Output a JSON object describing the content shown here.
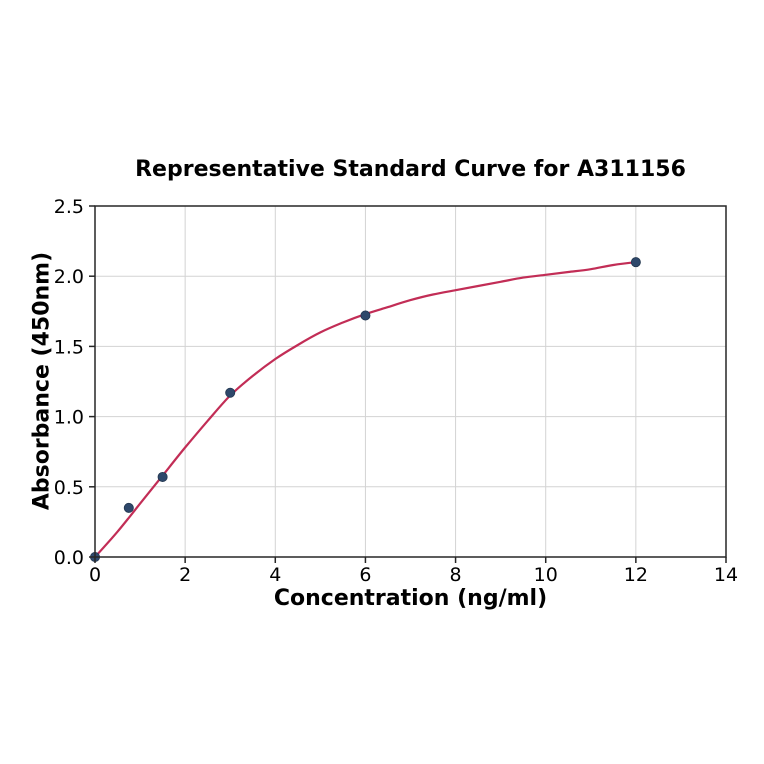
{
  "chart_data": {
    "type": "scatter",
    "title": "Representative Standard Curve for A311156",
    "xlabel": "Concentration (ng/ml)",
    "ylabel": "Absorbance (450nm)",
    "xlim": [
      0,
      14
    ],
    "ylim": [
      0,
      2.5
    ],
    "xticks": [
      0,
      2,
      4,
      6,
      8,
      10,
      12,
      14
    ],
    "yticks": [
      0.0,
      0.5,
      1.0,
      1.5,
      2.0,
      2.5
    ],
    "grid": true,
    "legend": "none",
    "points": [
      {
        "x": 0,
        "y": 0.0
      },
      {
        "x": 0.75,
        "y": 0.35
      },
      {
        "x": 1.5,
        "y": 0.57
      },
      {
        "x": 3,
        "y": 1.17
      },
      {
        "x": 6,
        "y": 1.72
      },
      {
        "x": 12,
        "y": 2.1
      }
    ],
    "fit_curve": [
      [
        0,
        0.0
      ],
      [
        0.5,
        0.18
      ],
      [
        1,
        0.38
      ],
      [
        1.5,
        0.58
      ],
      [
        2,
        0.78
      ],
      [
        2.5,
        0.97
      ],
      [
        3,
        1.15
      ],
      [
        3.5,
        1.29
      ],
      [
        4,
        1.41
      ],
      [
        4.5,
        1.51
      ],
      [
        5,
        1.6
      ],
      [
        5.5,
        1.67
      ],
      [
        6,
        1.73
      ],
      [
        6.5,
        1.78
      ],
      [
        7,
        1.83
      ],
      [
        7.5,
        1.87
      ],
      [
        8,
        1.9
      ],
      [
        8.5,
        1.93
      ],
      [
        9,
        1.96
      ],
      [
        9.5,
        1.99
      ],
      [
        10,
        2.01
      ],
      [
        10.5,
        2.03
      ],
      [
        11,
        2.05
      ],
      [
        11.5,
        2.08
      ],
      [
        12,
        2.1
      ]
    ],
    "colors": {
      "curve": "#c22d56",
      "marker": "#2e486b",
      "marker_edge": "#22364f",
      "grid": "#d3d3d3",
      "axis": "#262626",
      "text": "#000000"
    }
  }
}
